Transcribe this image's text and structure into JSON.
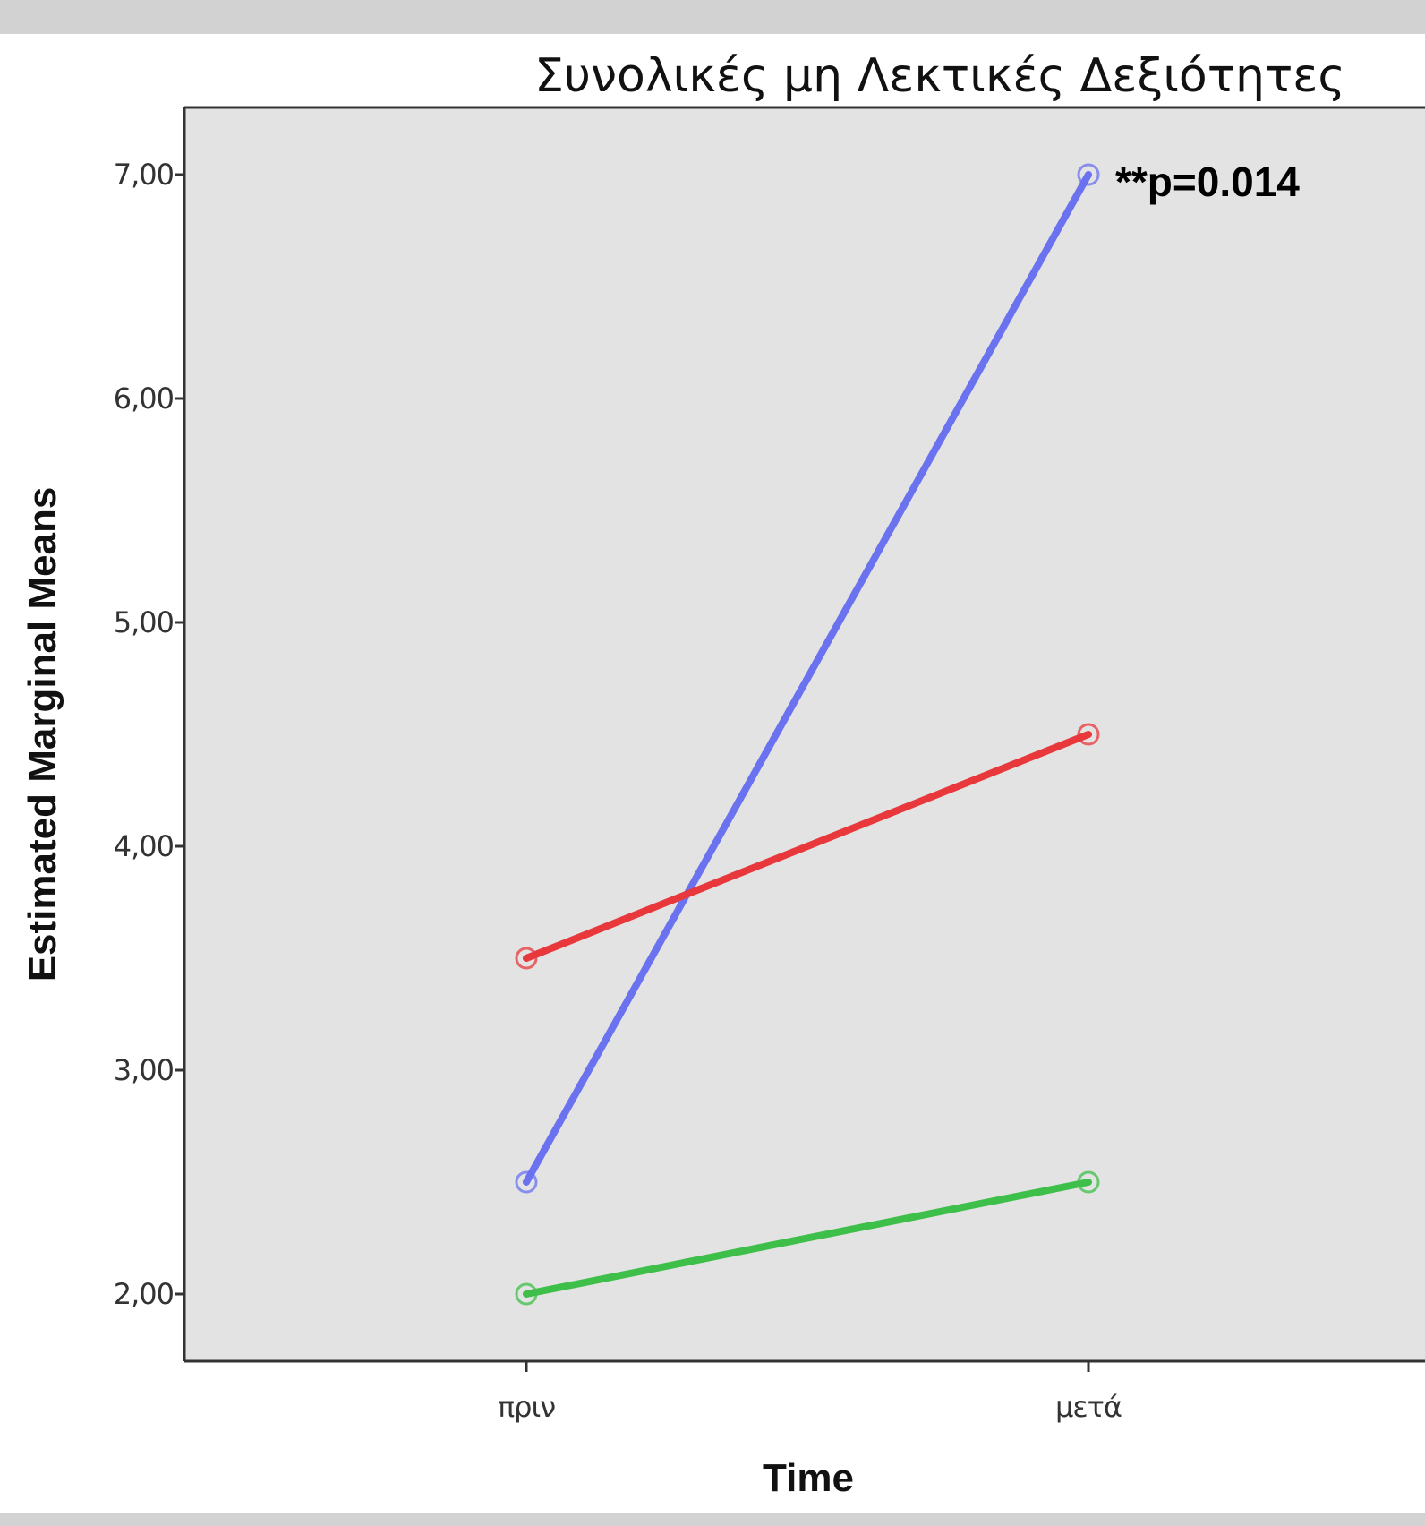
{
  "chart_data": {
    "type": "line",
    "title": "Συνολικές μη Λεκτικές Δεξιότητες",
    "xlabel": "Time",
    "ylabel": "Estimated Marginal Means",
    "categories": [
      "πριν",
      "μετά"
    ],
    "yticks": [
      "2,00",
      "3,00",
      "4,00",
      "5,00",
      "6,00",
      "7,00"
    ],
    "ylim": [
      1.7,
      7.3
    ],
    "grid": false,
    "series": [
      {
        "values": [
          2.5,
          7.0
        ],
        "color": "#6a72f0"
      },
      {
        "values": [
          3.5,
          4.5
        ],
        "color": "#e8383c"
      },
      {
        "values": [
          2.0,
          2.5
        ],
        "color": "#3dbf4a"
      }
    ],
    "annotations": [
      {
        "text": "**p=0.014",
        "x": "μετά",
        "y": 7.0
      }
    ],
    "colors": {
      "plot_background": "#e3e3e3",
      "axis": "#333333"
    }
  }
}
